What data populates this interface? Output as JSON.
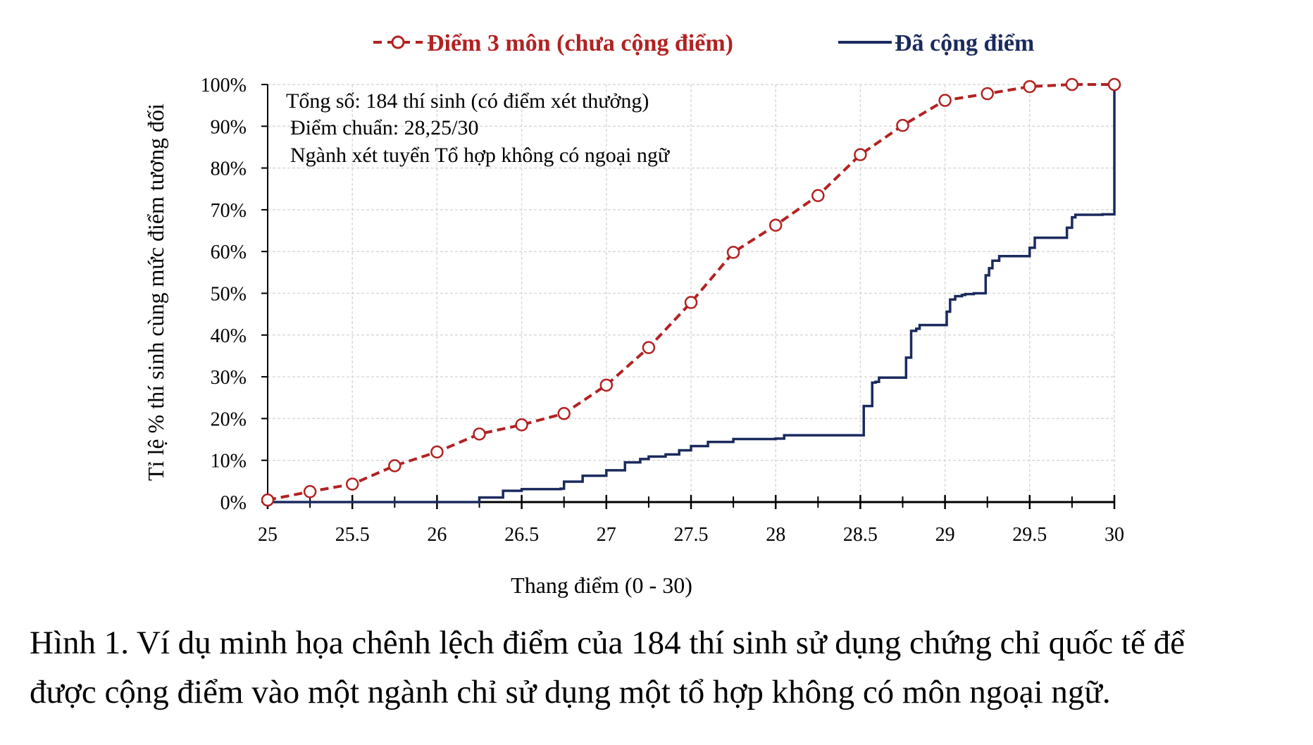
{
  "chart_data": {
    "type": "line",
    "title": "",
    "xlabel": "Thang điểm (0 - 30)",
    "ylabel": "Tỉ lệ % thí sinh cùng mức điểm tương đối",
    "xlim": [
      25,
      30
    ],
    "ylim": [
      0,
      100
    ],
    "x_ticks": [
      25,
      25.5,
      26,
      26.5,
      27,
      27.5,
      28,
      28.5,
      29,
      29.5,
      30
    ],
    "x_tick_labels": [
      "25",
      "25.5",
      "26",
      "26.5",
      "27",
      "27.5",
      "28",
      "28.5",
      "29",
      "29.5",
      "30"
    ],
    "y_ticks": [
      0,
      10,
      20,
      30,
      40,
      50,
      60,
      70,
      80,
      90,
      100
    ],
    "y_tick_labels": [
      "0%",
      "10%",
      "20%",
      "30%",
      "40%",
      "50%",
      "60%",
      "70%",
      "80%",
      "90%",
      "100%"
    ],
    "grid": true,
    "legend_position": "top",
    "annotations": [
      "Tổng số: 184 thí sinh  (có điểm xét thưởng)",
      "Điểm chuẩn: 28,25/30",
      "Ngành xét tuyển Tổ hợp không có ngoại ngữ"
    ],
    "series": [
      {
        "name": "Điểm 3 môn (chưa cộng điểm)",
        "color": "#b22222",
        "style": "dashed-circle-markers",
        "x": [
          25,
          25.25,
          25.5,
          25.75,
          26,
          26.25,
          26.5,
          26.75,
          27,
          27.25,
          27.5,
          27.75,
          28,
          28.25,
          28.5,
          28.75,
          29,
          29.25,
          29.5,
          29.75,
          30
        ],
        "y": [
          0.5,
          2.5,
          4.3,
          8.7,
          12.0,
          16.3,
          18.5,
          21.2,
          28.0,
          37.0,
          47.8,
          59.8,
          66.3,
          73.4,
          83.2,
          90.2,
          96.2,
          97.8,
          99.5,
          100,
          100
        ]
      },
      {
        "name": "Đã cộng điểm",
        "color": "#1a2a5e",
        "style": "solid-step",
        "x": [
          25,
          26.24,
          26.25,
          26.38,
          26.39,
          26.5,
          26.73,
          26.75,
          26.85,
          26.86,
          27,
          27.1,
          27.11,
          27.2,
          27.25,
          27.35,
          27.43,
          27.5,
          27.58,
          27.6,
          27.72,
          27.75,
          27.95,
          28.0,
          28.05,
          28.5,
          28.52,
          28.55,
          28.57,
          28.59,
          28.61,
          28.75,
          28.77,
          28.78,
          28.8,
          28.83,
          28.85,
          28.99,
          29.01,
          29.03,
          29.06,
          29.1,
          29.12,
          29.17,
          29.23,
          29.24,
          29.26,
          29.28,
          29.32,
          29.48,
          29.5,
          29.53,
          29.65,
          29.67,
          29.72,
          29.75,
          29.77,
          29.93,
          29.99,
          30.0
        ],
        "y": [
          0,
          0,
          1.1,
          1.1,
          2.7,
          3.1,
          3.2,
          4.9,
          4.9,
          6.3,
          7.6,
          7.6,
          9.5,
          10.3,
          10.9,
          11.4,
          12.4,
          13.4,
          13.4,
          14.4,
          14.4,
          15.1,
          15.1,
          15.2,
          16.0,
          16.0,
          23.0,
          23.0,
          28.6,
          28.8,
          29.8,
          29.8,
          34.6,
          34.6,
          41.0,
          41.5,
          42.4,
          42.4,
          45.6,
          48.5,
          49.3,
          49.6,
          49.8,
          50.0,
          50.0,
          54.3,
          56.0,
          57.8,
          58.9,
          58.9,
          60.9,
          63.3,
          63.3,
          63.3,
          65.7,
          68.2,
          68.8,
          68.9,
          68.9,
          100
        ]
      }
    ]
  },
  "caption": {
    "line1": "Hình 1. Ví dụ minh họa chênh lệch điểm của 184 thí sinh sử dụng chứng chỉ quốc tế để",
    "line2": "được cộng điểm vào một ngành chỉ sử dụng một tổ hợp không có môn ngoại ngữ."
  }
}
